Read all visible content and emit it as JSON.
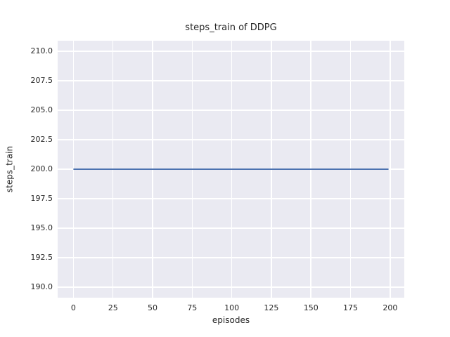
{
  "chart_data": {
    "type": "line",
    "title": "steps_train of DDPG",
    "xlabel": "episodes",
    "ylabel": "steps_train",
    "xlim": [
      -9.95,
      208.95
    ],
    "ylim": [
      189.1,
      210.9
    ],
    "grid": true,
    "legend": "none",
    "x_ticks": {
      "values": [
        0,
        25,
        50,
        75,
        100,
        125,
        150,
        175,
        200
      ],
      "labels": [
        "0",
        "25",
        "50",
        "75",
        "100",
        "125",
        "150",
        "175",
        "200"
      ]
    },
    "y_ticks": {
      "values": [
        190.0,
        192.5,
        195.0,
        197.5,
        200.0,
        202.5,
        205.0,
        207.5,
        210.0
      ],
      "labels": [
        "190.0",
        "192.5",
        "195.0",
        "197.5",
        "200.0",
        "202.5",
        "205.0",
        "207.5",
        "210.0"
      ]
    },
    "series": [
      {
        "name": "steps_train",
        "color": "#4C72B0",
        "x": [
          0,
          199
        ],
        "y": [
          200,
          200
        ],
        "description": "constant value 200 for all episodes 0-199"
      }
    ],
    "colors": {
      "figure_bg": "#FFFFFF",
      "plot_bg": "#EAEAF2",
      "grid_color": "#FFFFFF",
      "text_color": "#262626"
    }
  }
}
